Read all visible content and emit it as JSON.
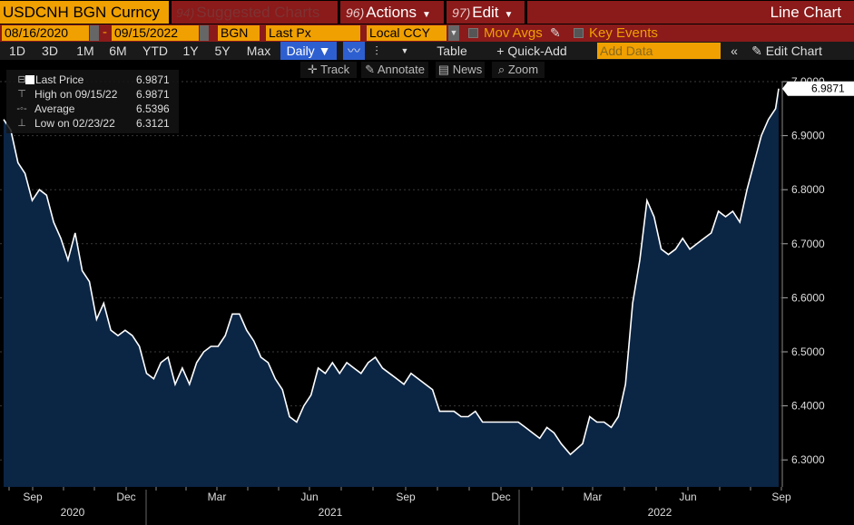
{
  "header": {
    "ticker": "USDCNH BGN Curncy",
    "suggested": {
      "num": "94)",
      "label": "Suggested Charts"
    },
    "actions": {
      "num": "96)",
      "label": "Actions"
    },
    "edit": {
      "num": "97)",
      "label": "Edit"
    },
    "chart_type": "Line Chart"
  },
  "settings": {
    "start_date": "08/16/2020",
    "end_date": "09/15/2022",
    "source": "BGN",
    "field": "Last Px",
    "currency": "Local CCY",
    "mov_avgs": "Mov Avgs",
    "key_events": "Key Events"
  },
  "periods": [
    "1D",
    "3D",
    "1M",
    "6M",
    "YTD",
    "1Y",
    "5Y",
    "Max"
  ],
  "frequency": "Daily",
  "toolbar": {
    "table": "Table",
    "quick_add": "Quick-Add",
    "add_data_placeholder": "Add Data",
    "edit_chart": "Edit Chart",
    "track": "Track",
    "annotate": "Annotate",
    "news": "News",
    "zoom": "Zoom"
  },
  "legend": [
    {
      "label": "Last Price",
      "value": "6.9871"
    },
    {
      "label": "High on 09/15/22",
      "value": "6.9871"
    },
    {
      "label": "Average",
      "value": "6.5396"
    },
    {
      "label": "Low on 02/23/22",
      "value": "6.3121"
    }
  ],
  "last_price_tag": "6.9871",
  "colors": {
    "line": "#ffffff",
    "fill": "#0b2545",
    "tab_red": "#8b1a1a",
    "amber": "#f0a000"
  },
  "chart_data": {
    "type": "area",
    "series_label": "Last Price",
    "ylim": [
      6.25,
      7.0
    ],
    "yticks": [
      "6.3000",
      "6.4000",
      "6.5000",
      "6.6000",
      "6.7000",
      "6.8000",
      "6.9000",
      "7.0000"
    ],
    "x_months": [
      "Sep",
      "Dec",
      "Mar",
      "Jun",
      "Sep",
      "Dec",
      "Mar",
      "Jun",
      "Sep"
    ],
    "x_years": [
      "2020",
      "2021",
      "2022"
    ],
    "points": [
      [
        "2020-08-17",
        6.93
      ],
      [
        "2020-08-24",
        6.91
      ],
      [
        "2020-08-31",
        6.85
      ],
      [
        "2020-09-07",
        6.83
      ],
      [
        "2020-09-14",
        6.78
      ],
      [
        "2020-09-21",
        6.8
      ],
      [
        "2020-09-28",
        6.79
      ],
      [
        "2020-10-05",
        6.74
      ],
      [
        "2020-10-12",
        6.71
      ],
      [
        "2020-10-19",
        6.67
      ],
      [
        "2020-10-26",
        6.72
      ],
      [
        "2020-11-02",
        6.65
      ],
      [
        "2020-11-09",
        6.63
      ],
      [
        "2020-11-16",
        6.56
      ],
      [
        "2020-11-23",
        6.59
      ],
      [
        "2020-11-30",
        6.54
      ],
      [
        "2020-12-07",
        6.53
      ],
      [
        "2020-12-14",
        6.54
      ],
      [
        "2020-12-21",
        6.53
      ],
      [
        "2020-12-28",
        6.51
      ],
      [
        "2021-01-04",
        6.46
      ],
      [
        "2021-01-11",
        6.45
      ],
      [
        "2021-01-18",
        6.48
      ],
      [
        "2021-01-25",
        6.49
      ],
      [
        "2021-02-01",
        6.44
      ],
      [
        "2021-02-08",
        6.47
      ],
      [
        "2021-02-15",
        6.44
      ],
      [
        "2021-02-22",
        6.48
      ],
      [
        "2021-03-01",
        6.5
      ],
      [
        "2021-03-08",
        6.51
      ],
      [
        "2021-03-15",
        6.51
      ],
      [
        "2021-03-22",
        6.53
      ],
      [
        "2021-03-29",
        6.57
      ],
      [
        "2021-04-05",
        6.57
      ],
      [
        "2021-04-12",
        6.54
      ],
      [
        "2021-04-19",
        6.52
      ],
      [
        "2021-04-26",
        6.49
      ],
      [
        "2021-05-03",
        6.48
      ],
      [
        "2021-05-10",
        6.45
      ],
      [
        "2021-05-17",
        6.43
      ],
      [
        "2021-05-24",
        6.38
      ],
      [
        "2021-05-31",
        6.37
      ],
      [
        "2021-06-07",
        6.4
      ],
      [
        "2021-06-14",
        6.42
      ],
      [
        "2021-06-21",
        6.47
      ],
      [
        "2021-06-28",
        6.46
      ],
      [
        "2021-07-05",
        6.48
      ],
      [
        "2021-07-12",
        6.46
      ],
      [
        "2021-07-19",
        6.48
      ],
      [
        "2021-07-26",
        6.47
      ],
      [
        "2021-08-02",
        6.46
      ],
      [
        "2021-08-09",
        6.48
      ],
      [
        "2021-08-16",
        6.49
      ],
      [
        "2021-08-23",
        6.47
      ],
      [
        "2021-08-30",
        6.46
      ],
      [
        "2021-09-06",
        6.45
      ],
      [
        "2021-09-13",
        6.44
      ],
      [
        "2021-09-20",
        6.46
      ],
      [
        "2021-09-27",
        6.45
      ],
      [
        "2021-10-04",
        6.44
      ],
      [
        "2021-10-11",
        6.43
      ],
      [
        "2021-10-18",
        6.39
      ],
      [
        "2021-10-25",
        6.39
      ],
      [
        "2021-11-01",
        6.39
      ],
      [
        "2021-11-08",
        6.38
      ],
      [
        "2021-11-15",
        6.38
      ],
      [
        "2021-11-22",
        6.39
      ],
      [
        "2021-11-29",
        6.37
      ],
      [
        "2021-12-06",
        6.37
      ],
      [
        "2021-12-13",
        6.37
      ],
      [
        "2021-12-20",
        6.37
      ],
      [
        "2021-12-27",
        6.37
      ],
      [
        "2022-01-03",
        6.37
      ],
      [
        "2022-01-10",
        6.36
      ],
      [
        "2022-01-17",
        6.35
      ],
      [
        "2022-01-24",
        6.34
      ],
      [
        "2022-01-31",
        6.36
      ],
      [
        "2022-02-07",
        6.35
      ],
      [
        "2022-02-14",
        6.33
      ],
      [
        "2022-02-23",
        6.31
      ],
      [
        "2022-03-01",
        6.32
      ],
      [
        "2022-03-07",
        6.33
      ],
      [
        "2022-03-14",
        6.38
      ],
      [
        "2022-03-21",
        6.37
      ],
      [
        "2022-03-28",
        6.37
      ],
      [
        "2022-04-04",
        6.36
      ],
      [
        "2022-04-11",
        6.38
      ],
      [
        "2022-04-18",
        6.44
      ],
      [
        "2022-04-25",
        6.59
      ],
      [
        "2022-05-02",
        6.67
      ],
      [
        "2022-05-09",
        6.78
      ],
      [
        "2022-05-16",
        6.75
      ],
      [
        "2022-05-23",
        6.69
      ],
      [
        "2022-05-30",
        6.68
      ],
      [
        "2022-06-06",
        6.69
      ],
      [
        "2022-06-13",
        6.71
      ],
      [
        "2022-06-20",
        6.69
      ],
      [
        "2022-06-27",
        6.7
      ],
      [
        "2022-07-04",
        6.71
      ],
      [
        "2022-07-11",
        6.72
      ],
      [
        "2022-07-18",
        6.76
      ],
      [
        "2022-07-25",
        6.75
      ],
      [
        "2022-08-01",
        6.76
      ],
      [
        "2022-08-08",
        6.74
      ],
      [
        "2022-08-15",
        6.8
      ],
      [
        "2022-08-22",
        6.85
      ],
      [
        "2022-08-29",
        6.9
      ],
      [
        "2022-09-05",
        6.93
      ],
      [
        "2022-09-12",
        6.95
      ],
      [
        "2022-09-15",
        6.9871
      ]
    ]
  }
}
